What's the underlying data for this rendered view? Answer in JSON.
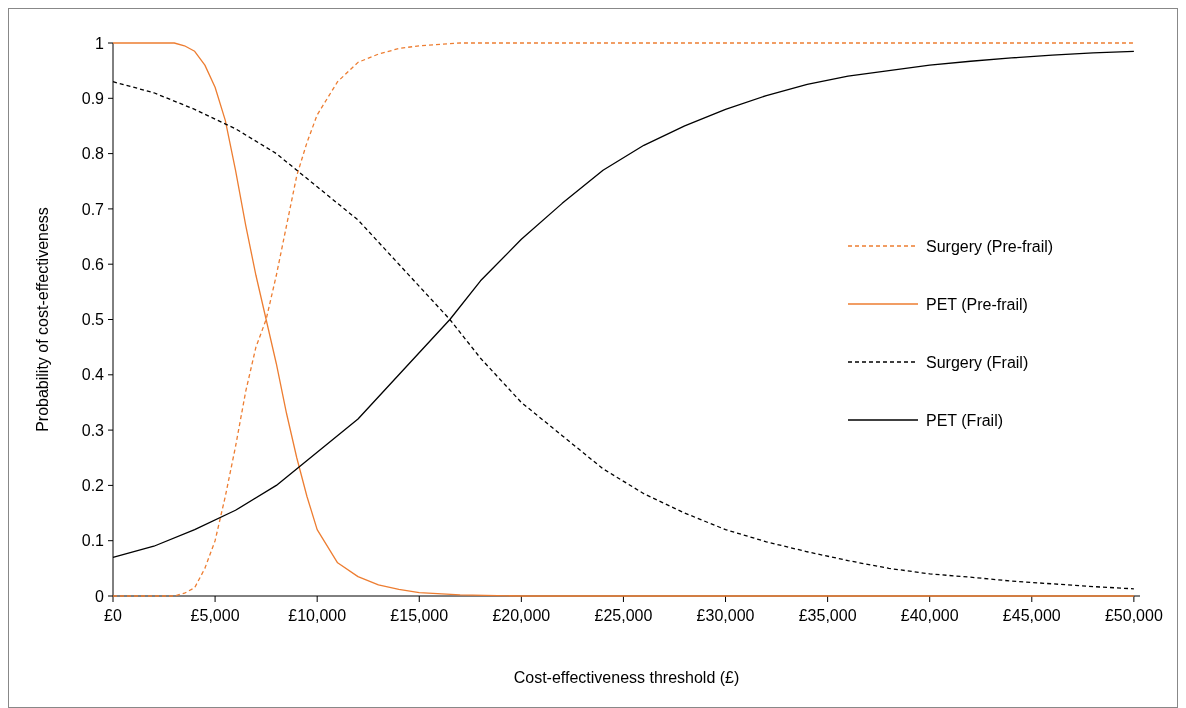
{
  "chart_data": {
    "type": "line",
    "xlabel": "Cost-effectiveness threshold (£)",
    "ylabel": "Probability of cost-effectiveness",
    "xlim": [
      0,
      50300
    ],
    "ylim": [
      0,
      1
    ],
    "xticks": [
      {
        "value": 0,
        "label": "£0"
      },
      {
        "value": 5000,
        "label": "£5,000"
      },
      {
        "value": 10000,
        "label": "£10,000"
      },
      {
        "value": 15000,
        "label": "£15,000"
      },
      {
        "value": 20000,
        "label": "£20,000"
      },
      {
        "value": 25000,
        "label": "£25,000"
      },
      {
        "value": 30000,
        "label": "£30,000"
      },
      {
        "value": 35000,
        "label": "£35,000"
      },
      {
        "value": 40000,
        "label": "£40,000"
      },
      {
        "value": 45000,
        "label": "£45,000"
      },
      {
        "value": 50000,
        "label": "£50,000"
      }
    ],
    "yticks": [
      0,
      0.1,
      0.2,
      0.3,
      0.4,
      0.5,
      0.6,
      0.7,
      0.8,
      0.9,
      1
    ],
    "legend": "right",
    "grid": false,
    "marker": "none",
    "series": [
      {
        "name": "Surgery (Pre-frail)",
        "color": "#ed7d31",
        "line_style": "dashed",
        "x": [
          0,
          3000,
          3500,
          4000,
          4500,
          5000,
          5500,
          6000,
          6500,
          7000,
          7500,
          8000,
          8500,
          9000,
          9500,
          10000,
          11000,
          12000,
          13000,
          14000,
          15000,
          17000,
          20000,
          50000
        ],
        "values": [
          0,
          0,
          0.005,
          0.015,
          0.05,
          0.1,
          0.18,
          0.27,
          0.37,
          0.45,
          0.5,
          0.58,
          0.67,
          0.76,
          0.82,
          0.87,
          0.93,
          0.965,
          0.98,
          0.99,
          0.995,
          1,
          1,
          1
        ]
      },
      {
        "name": "PET (Pre-frail)",
        "color": "#ed7d31",
        "line_style": "solid",
        "x": [
          0,
          3000,
          3500,
          4000,
          4500,
          5000,
          5500,
          6000,
          6500,
          7000,
          7500,
          8000,
          8500,
          9000,
          9500,
          10000,
          11000,
          12000,
          13000,
          14000,
          15000,
          17000,
          20000,
          50000
        ],
        "values": [
          1,
          1,
          0.995,
          0.985,
          0.96,
          0.92,
          0.86,
          0.77,
          0.67,
          0.58,
          0.5,
          0.42,
          0.33,
          0.25,
          0.18,
          0.12,
          0.06,
          0.035,
          0.02,
          0.012,
          0.006,
          0.002,
          0,
          0
        ]
      },
      {
        "name": "Surgery (Frail)",
        "color": "#000000",
        "line_style": "dashed",
        "x": [
          0,
          2000,
          4000,
          6000,
          8000,
          10000,
          12000,
          14000,
          16500,
          18000,
          20000,
          22000,
          24000,
          26000,
          28000,
          30000,
          32000,
          34000,
          36000,
          38000,
          40000,
          42000,
          44000,
          46000,
          48000,
          50000
        ],
        "values": [
          0.93,
          0.91,
          0.88,
          0.845,
          0.8,
          0.74,
          0.68,
          0.6,
          0.5,
          0.43,
          0.35,
          0.29,
          0.23,
          0.185,
          0.15,
          0.12,
          0.098,
          0.08,
          0.064,
          0.05,
          0.04,
          0.034,
          0.027,
          0.022,
          0.017,
          0.013
        ]
      },
      {
        "name": "PET (Frail)",
        "color": "#000000",
        "line_style": "solid",
        "x": [
          0,
          2000,
          4000,
          6000,
          8000,
          10000,
          12000,
          14000,
          16500,
          18000,
          20000,
          22000,
          24000,
          26000,
          28000,
          30000,
          32000,
          34000,
          36000,
          38000,
          40000,
          42000,
          44000,
          46000,
          48000,
          50000
        ],
        "values": [
          0.07,
          0.09,
          0.12,
          0.155,
          0.2,
          0.26,
          0.32,
          0.4,
          0.5,
          0.57,
          0.645,
          0.71,
          0.77,
          0.815,
          0.85,
          0.88,
          0.905,
          0.925,
          0.94,
          0.95,
          0.96,
          0.967,
          0.973,
          0.978,
          0.982,
          0.985
        ]
      }
    ]
  }
}
